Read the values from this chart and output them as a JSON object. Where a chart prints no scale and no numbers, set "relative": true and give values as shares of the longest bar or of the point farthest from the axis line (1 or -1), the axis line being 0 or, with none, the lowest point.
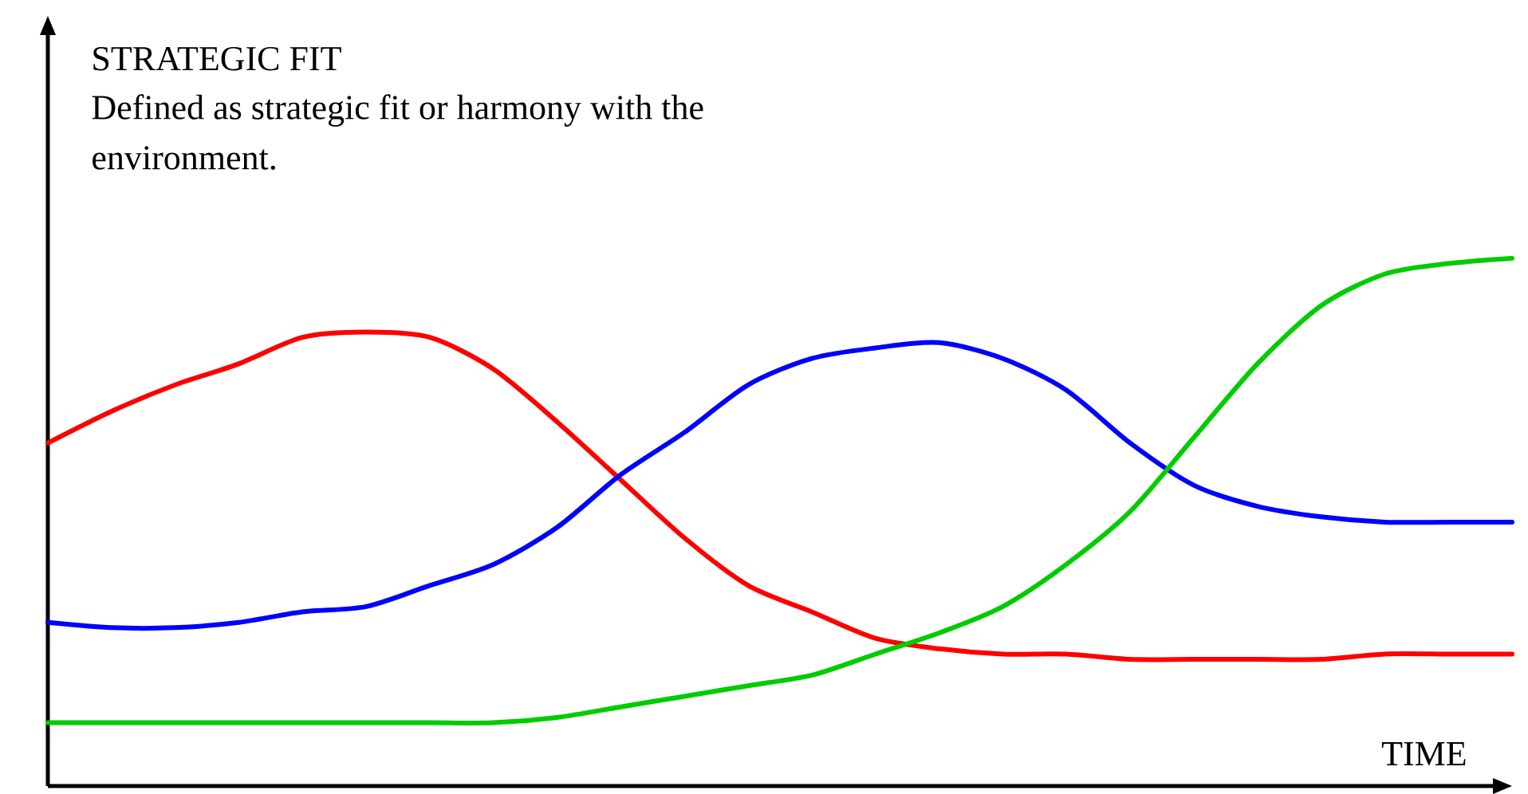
{
  "chart_data": {
    "type": "line",
    "relative": true,
    "title": "STRATEGIC FIT",
    "subtitle": "Defined as strategic fit or harmony with the environment.",
    "xlabel": "TIME",
    "categories": [
      null,
      null,
      null,
      null,
      null,
      null,
      null,
      null,
      null,
      null,
      null,
      null,
      null,
      null,
      null,
      null,
      null,
      null,
      null,
      null,
      null,
      null,
      null,
      null
    ],
    "series": [
      {
        "color": "#ff0000",
        "values": [
          0.65,
          0.71,
          0.76,
          0.8,
          0.85,
          0.86,
          0.85,
          0.79,
          0.69,
          0.58,
          0.47,
          0.38,
          0.33,
          0.28,
          0.26,
          0.25,
          0.25,
          0.24,
          0.24,
          0.24,
          0.24,
          0.25,
          0.25,
          0.25
        ]
      },
      {
        "color": "#0000ff",
        "values": [
          0.31,
          0.3,
          0.3,
          0.31,
          0.33,
          0.34,
          0.38,
          0.42,
          0.49,
          0.59,
          0.67,
          0.76,
          0.81,
          0.83,
          0.84,
          0.81,
          0.75,
          0.65,
          0.57,
          0.53,
          0.51,
          0.5,
          0.5,
          0.5
        ]
      },
      {
        "color": "#00cc00",
        "values": [
          0.12,
          0.12,
          0.12,
          0.12,
          0.12,
          0.12,
          0.12,
          0.12,
          0.13,
          0.15,
          0.17,
          0.19,
          0.21,
          0.25,
          0.29,
          0.34,
          0.42,
          0.52,
          0.66,
          0.8,
          0.91,
          0.97,
          0.99,
          1.0
        ]
      }
    ]
  }
}
